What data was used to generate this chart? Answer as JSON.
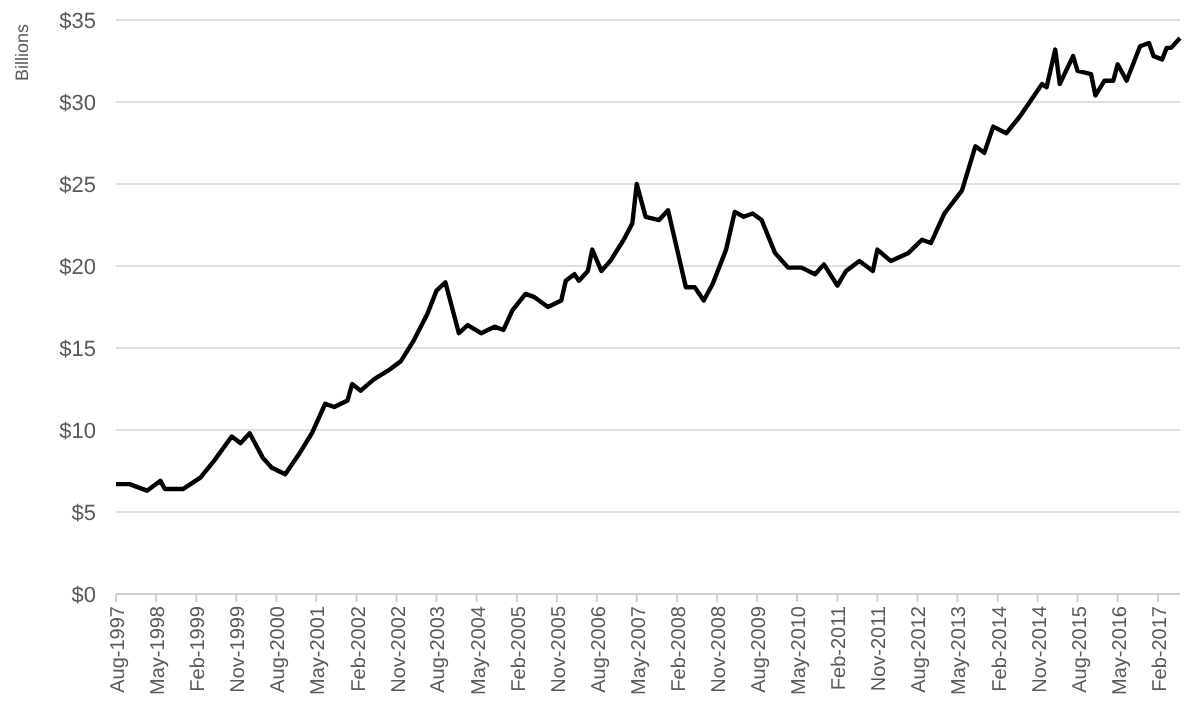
{
  "chart_data": {
    "type": "line",
    "ylabel": "Billions",
    "grid": "y",
    "marker": "none",
    "line_style": "solid",
    "x": [
      "1997-08",
      "1997-11",
      "1998-03",
      "1998-06",
      "1998-07",
      "1998-11",
      "1999-03",
      "1999-06",
      "1999-10",
      "1999-12",
      "2000-02",
      "2000-05",
      "2000-07",
      "2000-10",
      "2001-01",
      "2001-04",
      "2001-07",
      "2001-09",
      "2001-12",
      "2002-01",
      "2002-03",
      "2002-06",
      "2002-09",
      "2002-12",
      "2003-03",
      "2003-06",
      "2003-08",
      "2003-10",
      "2004-01",
      "2004-03",
      "2004-06",
      "2004-09",
      "2004-11",
      "2005-01",
      "2005-04",
      "2005-06",
      "2005-09",
      "2005-12",
      "2006-01",
      "2006-03",
      "2006-04",
      "2006-06",
      "2006-07",
      "2006-09",
      "2006-11",
      "2007-02",
      "2007-04",
      "2007-05",
      "2007-07",
      "2007-10",
      "2007-12",
      "2008-04",
      "2008-06",
      "2008-08",
      "2008-10",
      "2009-01",
      "2009-03",
      "2009-05",
      "2009-07",
      "2009-09",
      "2009-12",
      "2010-03",
      "2010-06",
      "2010-09",
      "2010-11",
      "2011-02",
      "2011-04",
      "2011-07",
      "2011-10",
      "2011-11",
      "2012-02",
      "2012-06",
      "2012-09",
      "2012-11",
      "2013-02",
      "2013-06",
      "2013-09",
      "2013-11",
      "2014-01",
      "2014-04",
      "2014-07",
      "2014-12",
      "2015-01",
      "2015-03",
      "2015-04",
      "2015-07",
      "2015-08",
      "2015-11",
      "2015-12",
      "2016-02",
      "2016-04",
      "2016-05",
      "2016-07",
      "2016-10",
      "2016-12",
      "2017-01",
      "2017-03",
      "2017-04",
      "2017-05",
      "2017-07"
    ],
    "series": [
      {
        "color": "#000000",
        "values": [
          6.7,
          6.7,
          6.3,
          6.9,
          6.4,
          6.4,
          7.1,
          8.1,
          9.6,
          9.2,
          9.8,
          8.3,
          7.7,
          7.3,
          8.5,
          9.8,
          11.6,
          11.4,
          11.8,
          12.8,
          12.4,
          13.1,
          13.6,
          14.2,
          15.5,
          17.1,
          18.5,
          19.0,
          15.9,
          16.4,
          15.9,
          16.3,
          16.1,
          17.3,
          18.3,
          18.1,
          17.5,
          17.9,
          19.1,
          19.5,
          19.1,
          19.7,
          21.0,
          19.7,
          20.3,
          21.6,
          22.6,
          25.0,
          23.0,
          22.8,
          23.4,
          18.7,
          18.7,
          17.9,
          18.9,
          21.0,
          23.3,
          23.0,
          23.2,
          22.8,
          20.8,
          19.9,
          19.9,
          19.5,
          20.1,
          18.8,
          19.7,
          20.3,
          19.7,
          21.0,
          20.3,
          20.8,
          21.6,
          21.4,
          23.2,
          24.6,
          27.3,
          26.9,
          28.5,
          28.1,
          29.1,
          31.1,
          30.9,
          33.2,
          31.1,
          32.8,
          31.9,
          31.7,
          30.4,
          31.3,
          31.3,
          32.3,
          31.3,
          33.4,
          33.6,
          32.8,
          32.6,
          33.3,
          33.3,
          33.9
        ]
      }
    ],
    "xlim": [
      "1997-08",
      "2017-07"
    ],
    "xticks": [
      {
        "value": "1997-08",
        "label": "Aug-1997"
      },
      {
        "value": "1998-05",
        "label": "May-1998"
      },
      {
        "value": "1999-02",
        "label": "Feb-1999"
      },
      {
        "value": "1999-11",
        "label": "Nov-1999"
      },
      {
        "value": "2000-08",
        "label": "Aug-2000"
      },
      {
        "value": "2001-05",
        "label": "May-2001"
      },
      {
        "value": "2002-02",
        "label": "Feb-2002"
      },
      {
        "value": "2002-11",
        "label": "Nov-2002"
      },
      {
        "value": "2003-08",
        "label": "Aug-2003"
      },
      {
        "value": "2004-05",
        "label": "May-2004"
      },
      {
        "value": "2005-02",
        "label": "Feb-2005"
      },
      {
        "value": "2005-11",
        "label": "Nov-2005"
      },
      {
        "value": "2006-08",
        "label": "Aug-2006"
      },
      {
        "value": "2007-05",
        "label": "May-2007"
      },
      {
        "value": "2008-02",
        "label": "Feb-2008"
      },
      {
        "value": "2008-11",
        "label": "Nov-2008"
      },
      {
        "value": "2009-08",
        "label": "Aug-2009"
      },
      {
        "value": "2010-05",
        "label": "May-2010"
      },
      {
        "value": "2011-02",
        "label": "Feb-2011"
      },
      {
        "value": "2011-11",
        "label": "Nov-2011"
      },
      {
        "value": "2012-08",
        "label": "Aug-2012"
      },
      {
        "value": "2013-05",
        "label": "May-2013"
      },
      {
        "value": "2014-02",
        "label": "Feb-2014"
      },
      {
        "value": "2014-11",
        "label": "Nov-2014"
      },
      {
        "value": "2015-08",
        "label": "Aug-2015"
      },
      {
        "value": "2016-05",
        "label": "May-2016"
      },
      {
        "value": "2017-02",
        "label": "Feb-2017"
      }
    ],
    "ylim": [
      0,
      35
    ],
    "yticks": [
      {
        "value": 0,
        "label": "$0"
      },
      {
        "value": 5,
        "label": "$5"
      },
      {
        "value": 10,
        "label": "$10"
      },
      {
        "value": 15,
        "label": "$15"
      },
      {
        "value": 20,
        "label": "$20"
      },
      {
        "value": 25,
        "label": "$25"
      },
      {
        "value": 30,
        "label": "$30"
      },
      {
        "value": 35,
        "label": "$35"
      }
    ]
  }
}
